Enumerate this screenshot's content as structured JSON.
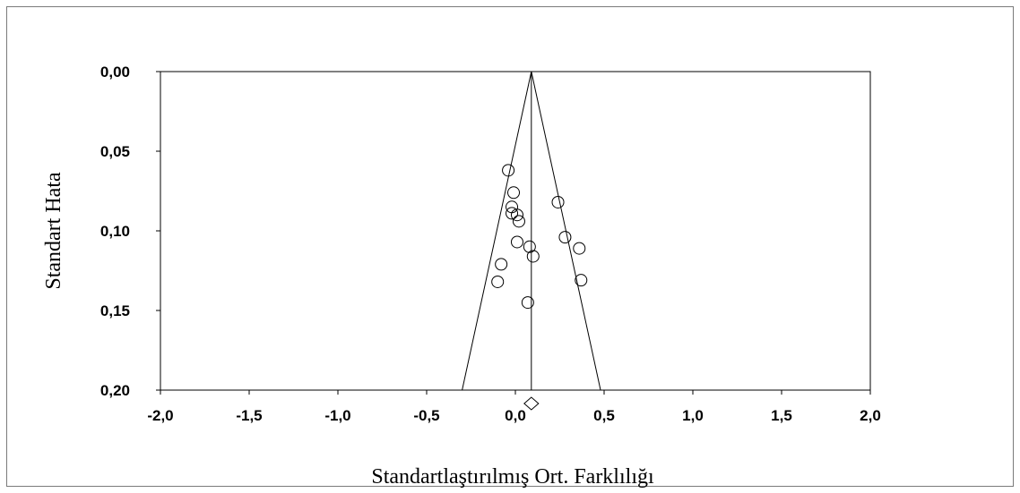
{
  "chart_data": {
    "type": "scatter",
    "subtype": "funnel-plot",
    "title": "",
    "xlabel": "Standartlaştırılmış Ort. Farklılığı",
    "ylabel": "Standart Hata",
    "xlim": [
      -2.0,
      2.0
    ],
    "ylim": [
      0.0,
      0.2
    ],
    "y_inverted": true,
    "x_ticks": [
      -2.0,
      -1.5,
      -1.0,
      -0.5,
      0.0,
      0.5,
      1.0,
      1.5,
      2.0
    ],
    "x_tick_labels": [
      "-2,0",
      "-1,5",
      "-1,0",
      "-0,5",
      "0,0",
      "0,5",
      "1,0",
      "1,5",
      "2,0"
    ],
    "y_ticks": [
      0.0,
      0.05,
      0.1,
      0.15,
      0.2
    ],
    "y_tick_labels": [
      "0,00",
      "0,05",
      "0,10",
      "0,15",
      "0,20"
    ],
    "grid": false,
    "summary_effect": 0.09,
    "funnel_bottom": [
      -0.3,
      0.48
    ],
    "points": [
      {
        "x": -0.04,
        "y": 0.062
      },
      {
        "x": -0.01,
        "y": 0.076
      },
      {
        "x": -0.02,
        "y": 0.085
      },
      {
        "x": -0.02,
        "y": 0.089
      },
      {
        "x": 0.01,
        "y": 0.09
      },
      {
        "x": 0.02,
        "y": 0.094
      },
      {
        "x": 0.24,
        "y": 0.082
      },
      {
        "x": 0.01,
        "y": 0.107
      },
      {
        "x": 0.08,
        "y": 0.11
      },
      {
        "x": 0.1,
        "y": 0.116
      },
      {
        "x": 0.28,
        "y": 0.104
      },
      {
        "x": 0.36,
        "y": 0.111
      },
      {
        "x": -0.08,
        "y": 0.121
      },
      {
        "x": -0.1,
        "y": 0.132
      },
      {
        "x": 0.37,
        "y": 0.131
      },
      {
        "x": 0.07,
        "y": 0.145
      }
    ]
  }
}
